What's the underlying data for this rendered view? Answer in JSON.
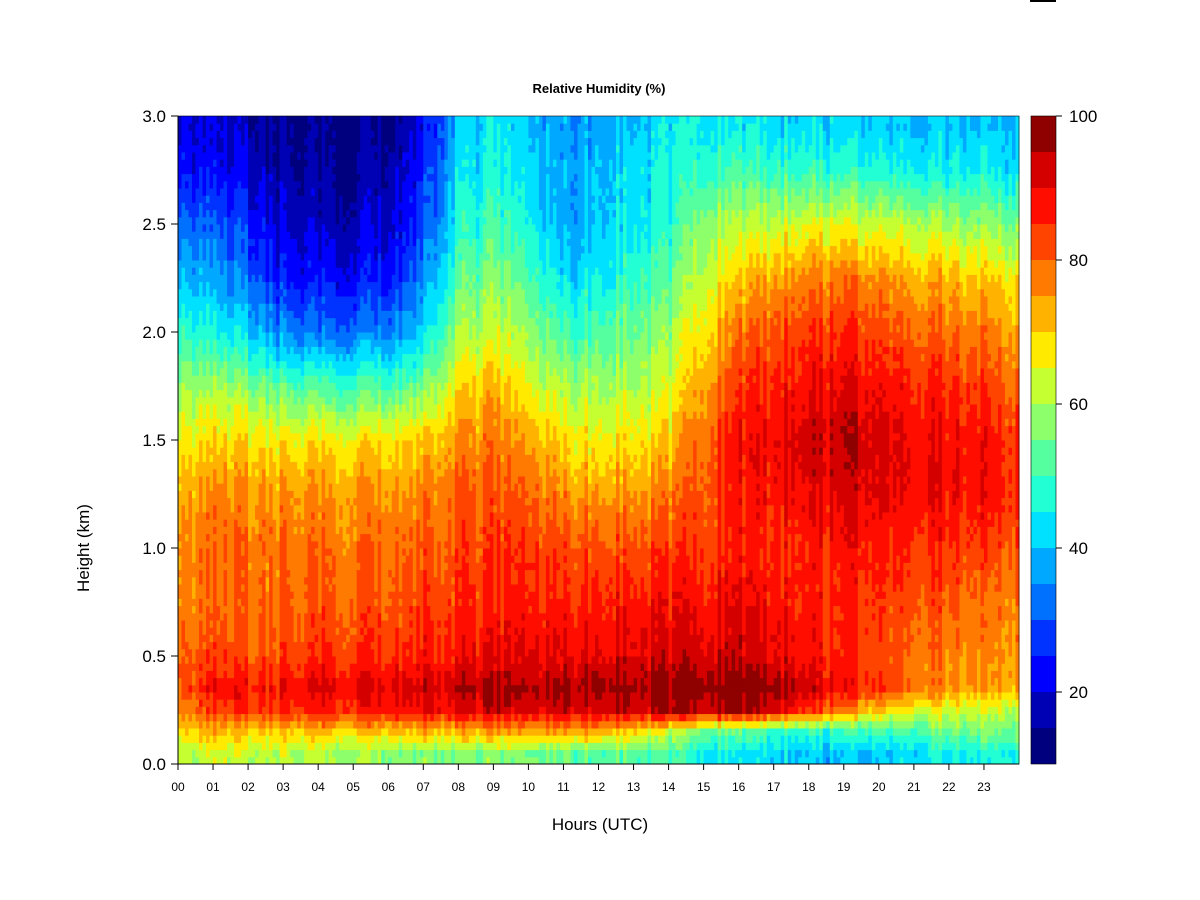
{
  "chart_data": {
    "type": "heatmap",
    "title": "Relative Humidity (%)",
    "xlabel": "Hours (UTC)",
    "ylabel": "Height (km)",
    "x_tick_labels": [
      "00",
      "01",
      "02",
      "03",
      "04",
      "05",
      "06",
      "07",
      "08",
      "09",
      "10",
      "11",
      "12",
      "13",
      "14",
      "15",
      "16",
      "17",
      "18",
      "19",
      "20",
      "21",
      "22",
      "23"
    ],
    "xlim": [
      0,
      24
    ],
    "y_ticks": [
      0.0,
      0.5,
      1.0,
      1.5,
      2.0,
      2.5,
      3.0
    ],
    "y_tick_labels": [
      "0.0",
      "0.5",
      "1.0",
      "1.5",
      "2.0",
      "2.5",
      "3.0"
    ],
    "ylim": [
      0,
      3
    ],
    "colorbar": {
      "range": [
        10,
        100
      ],
      "ticks": [
        20,
        40,
        60,
        80,
        100
      ],
      "tick_labels": [
        "20",
        "40",
        "60",
        "80",
        "100"
      ],
      "levels": [
        10,
        15,
        20,
        25,
        30,
        35,
        40,
        45,
        50,
        55,
        60,
        65,
        70,
        75,
        80,
        85,
        90,
        95,
        100
      ],
      "colors": [
        "#00007F",
        "#0000B4",
        "#0000FF",
        "#0033FF",
        "#0070FF",
        "#00A8FF",
        "#00E1FF",
        "#22FFD5",
        "#55FF9F",
        "#8DFF6A",
        "#C6FF31",
        "#FFEA00",
        "#FFB200",
        "#FF7A00",
        "#FF4400",
        "#FF0E00",
        "#D40000",
        "#8F0000"
      ]
    },
    "heights_km": [
      0.05,
      0.15,
      0.25,
      0.35,
      0.5,
      0.75,
      1.0,
      1.25,
      1.5,
      1.75,
      2.0,
      2.25,
      2.5,
      2.75,
      2.95
    ],
    "hours": [
      0,
      1,
      2,
      3,
      4,
      5,
      6,
      7,
      8,
      9,
      10,
      11,
      12,
      13,
      14,
      15,
      16,
      17,
      18,
      19,
      20,
      21,
      22,
      23,
      23.8
    ],
    "rh_percent": [
      [
        62,
        62,
        62,
        61,
        60,
        59,
        58,
        57,
        56,
        56,
        55,
        54,
        53,
        52,
        50,
        46,
        43,
        42,
        40,
        39,
        41,
        43,
        45,
        46,
        47
      ],
      [
        70,
        71,
        71,
        70,
        70,
        71,
        72,
        72,
        72,
        73,
        73,
        74,
        74,
        70,
        63,
        55,
        52,
        50,
        48,
        49,
        50,
        52,
        54,
        55,
        56
      ],
      [
        78,
        82,
        84,
        84,
        86,
        87,
        88,
        89,
        90,
        91,
        91,
        92,
        93,
        93,
        93,
        94,
        96,
        93,
        84,
        76,
        70,
        66,
        64,
        63,
        62
      ],
      [
        83,
        87,
        88,
        88,
        90,
        91,
        92,
        93,
        94,
        95,
        95,
        96,
        97,
        97,
        97,
        98,
        99,
        98,
        93,
        88,
        84,
        80,
        75,
        74,
        74
      ],
      [
        81,
        82,
        82,
        82,
        84,
        85,
        86,
        87,
        88,
        89,
        90,
        90,
        91,
        91,
        92,
        92,
        93,
        91,
        88,
        85,
        82,
        80,
        77,
        76,
        76
      ],
      [
        78,
        78,
        79,
        79,
        80,
        81,
        82,
        83,
        84,
        85,
        86,
        86,
        87,
        87,
        88,
        88,
        90,
        88,
        86,
        85,
        84,
        83,
        80,
        78,
        78
      ],
      [
        77,
        78,
        79,
        78,
        78,
        79,
        80,
        80,
        82,
        83,
        84,
        82,
        82,
        82,
        83,
        84,
        86,
        86,
        86,
        87,
        87,
        86,
        85,
        83,
        82
      ],
      [
        74,
        75,
        76,
        75,
        75,
        76,
        76,
        77,
        80,
        80,
        80,
        76,
        75,
        75,
        77,
        82,
        86,
        88,
        90,
        91,
        91,
        90,
        89,
        88,
        86
      ],
      [
        68,
        68,
        69,
        67,
        67,
        68,
        69,
        70,
        75,
        77,
        74,
        68,
        67,
        68,
        70,
        80,
        88,
        90,
        93,
        94,
        92,
        90,
        89,
        88,
        85
      ],
      [
        60,
        58,
        57,
        52,
        50,
        51,
        52,
        55,
        68,
        70,
        66,
        60,
        60,
        60,
        63,
        74,
        84,
        86,
        89,
        90,
        88,
        87,
        85,
        84,
        80
      ],
      [
        50,
        45,
        42,
        34,
        32,
        33,
        35,
        42,
        59,
        62,
        59,
        50,
        52,
        55,
        58,
        69,
        78,
        82,
        84,
        84,
        83,
        81,
        79,
        78,
        75
      ],
      [
        42,
        36,
        32,
        24,
        22,
        23,
        25,
        34,
        52,
        56,
        52,
        42,
        45,
        49,
        52,
        63,
        70,
        74,
        77,
        77,
        76,
        74,
        72,
        70,
        68
      ],
      [
        34,
        29,
        26,
        19,
        17,
        18,
        20,
        28,
        46,
        50,
        46,
        37,
        40,
        44,
        47,
        58,
        62,
        63,
        64,
        64,
        63,
        62,
        60,
        58,
        56
      ],
      [
        25,
        22,
        20,
        16,
        14,
        15,
        17,
        25,
        42,
        45,
        42,
        37,
        40,
        43,
        45,
        49,
        50,
        50,
        49,
        48,
        47,
        46,
        45,
        45,
        44
      ],
      [
        22,
        19,
        17,
        14,
        13,
        14,
        15,
        22,
        40,
        43,
        40,
        36,
        38,
        41,
        43,
        45,
        44,
        43,
        42,
        41,
        41,
        40,
        40,
        40,
        40
      ]
    ]
  }
}
